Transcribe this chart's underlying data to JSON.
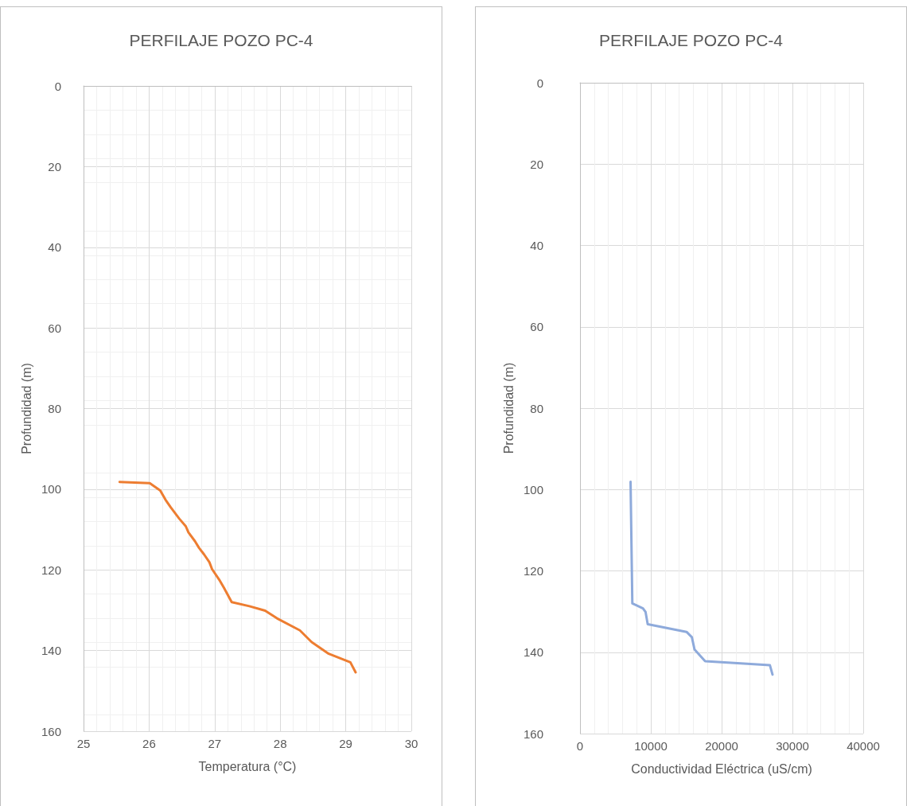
{
  "chart_data": [
    {
      "type": "line",
      "title": "PERFILAJE POZO PC-4",
      "xlabel": "Temperatura (°C)",
      "ylabel": "Profundidad (m)",
      "xlim": [
        25,
        30
      ],
      "xticks": [
        25,
        26,
        27,
        28,
        29,
        30
      ],
      "ylim": [
        160,
        0
      ],
      "yticks": [
        0,
        20,
        40,
        60,
        80,
        100,
        120,
        140,
        160
      ],
      "grid": true,
      "marker": "none",
      "line_style": "solid",
      "series": [
        {
          "color": "#ed7d31",
          "x": [
            25.55,
            26.01,
            26.17,
            26.25,
            26.33,
            26.46,
            26.56,
            26.6,
            26.7,
            26.76,
            26.84,
            26.92,
            26.96,
            27.08,
            27.14,
            27.26,
            27.53,
            27.77,
            27.95,
            28.3,
            28.48,
            28.74,
            29.07,
            29.15
          ],
          "values": [
            98.2,
            98.5,
            100.3,
            102.6,
            104.5,
            107.3,
            109.2,
            110.7,
            112.9,
            114.5,
            116.2,
            118.1,
            119.8,
            122.7,
            124.4,
            128,
            129,
            130.1,
            132,
            135,
            137.9,
            140.8,
            142.9,
            145.4
          ]
        }
      ]
    },
    {
      "type": "line",
      "title": "PERFILAJE POZO PC-4",
      "xlabel": "Conductividad Eléctrica (uS/cm)",
      "ylabel": "Profundidad (m)",
      "xlim": [
        0,
        40000
      ],
      "xticks": [
        0,
        10000,
        20000,
        30000,
        40000
      ],
      "ylim": [
        160,
        0
      ],
      "yticks": [
        0,
        20,
        40,
        60,
        80,
        100,
        120,
        140,
        160
      ],
      "grid": true,
      "marker": "none",
      "line_style": "solid",
      "series": [
        {
          "color": "#8eaadb",
          "x": [
            7140,
            7390,
            8890,
            9260,
            9560,
            15050,
            15800,
            16170,
            17670,
            26820,
            27190
          ],
          "values": [
            98.1,
            128,
            129.2,
            130.1,
            133.1,
            135,
            136.3,
            139.3,
            142.2,
            143.2,
            145.5
          ]
        }
      ]
    }
  ]
}
